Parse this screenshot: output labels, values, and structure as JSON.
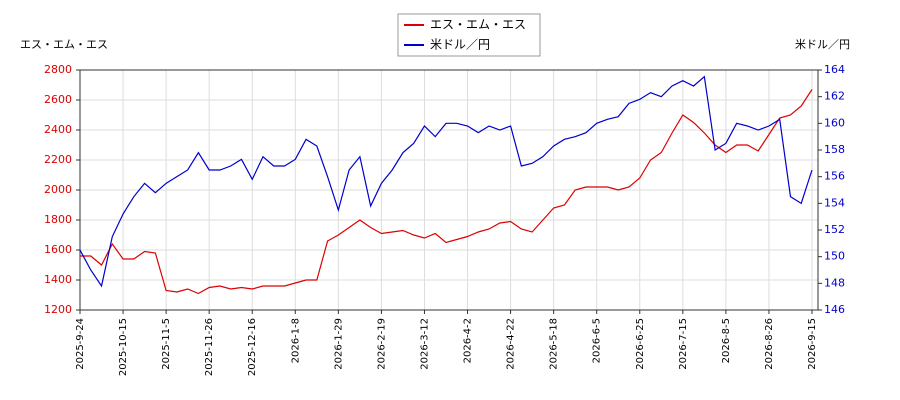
{
  "chart_data": {
    "type": "line",
    "y_label": "エス・エム・エス",
    "y2_label": "米ドル／円",
    "categories": [
      "2025-9-24",
      null,
      null,
      null,
      "2025-10-15",
      null,
      null,
      null,
      "2025-11-5",
      null,
      null,
      null,
      "2025-11-26",
      null,
      null,
      null,
      "2025-12-16",
      null,
      null,
      null,
      "2026-1-8",
      null,
      null,
      null,
      "2026-1-29",
      null,
      null,
      null,
      "2026-2-19",
      null,
      null,
      null,
      "2026-3-12",
      null,
      null,
      null,
      "2026-4-2",
      null,
      null,
      null,
      "2026-4-22",
      null,
      null,
      null,
      "2026-5-18",
      null,
      null,
      null,
      "2026-6-5",
      null,
      null,
      null,
      "2026-6-25",
      null,
      null,
      null,
      "2026-7-15",
      null,
      null,
      null,
      "2026-8-5",
      null,
      null,
      null,
      "2026-8-26",
      null,
      null,
      null,
      "2026-9-15"
    ],
    "series": [
      {
        "name": "エス・エム・エス",
        "color": "#dd0000",
        "axis": "y",
        "values": [
          1560,
          1560,
          1500,
          1640,
          1540,
          1540,
          1590,
          1580,
          1330,
          1320,
          1340,
          1310,
          1350,
          1360,
          1340,
          1350,
          1340,
          1360,
          1360,
          1360,
          1380,
          1400,
          1400,
          1660,
          1700,
          1750,
          1800,
          1750,
          1710,
          1720,
          1730,
          1700,
          1680,
          1710,
          1650,
          1670,
          1690,
          1720,
          1740,
          1780,
          1790,
          1740,
          1720,
          1800,
          1880,
          1900,
          2000,
          2020,
          2020,
          2020,
          2000,
          2020,
          2080,
          2200,
          2250,
          2380,
          2500,
          2450,
          2380,
          2300,
          2250,
          2300,
          2300,
          2260,
          2370,
          2480,
          2500,
          2560,
          2670
        ]
      },
      {
        "name": "米ドル／円",
        "color": "#0000cc",
        "axis": "y2",
        "values": [
          150.5,
          149,
          147.8,
          151.5,
          153.2,
          154.5,
          155.5,
          154.8,
          155.5,
          156,
          156.5,
          157.8,
          156.5,
          156.5,
          156.8,
          157.3,
          155.8,
          157.5,
          156.8,
          156.8,
          157.3,
          158.8,
          158.3,
          156,
          153.5,
          156.5,
          157.5,
          153.8,
          155.5,
          156.5,
          157.8,
          158.5,
          159.8,
          159,
          160,
          160,
          159.8,
          159.3,
          159.8,
          159.5,
          159.8,
          156.8,
          157,
          157.5,
          158.3,
          158.8,
          159,
          159.3,
          160,
          160.3,
          160.5,
          161.5,
          161.8,
          162.3,
          162,
          162.8,
          163.2,
          162.8,
          163.5,
          158,
          158.5,
          160,
          159.8,
          159.5,
          159.8,
          160.3,
          154.5,
          154,
          156.5
        ]
      }
    ],
    "ylim": [
      1200,
      2800
    ],
    "yticks": [
      1200,
      1400,
      1600,
      1800,
      2000,
      2200,
      2400,
      2600,
      2800
    ],
    "y2lim": [
      146,
      164
    ],
    "y2ticks": [
      146,
      148,
      150,
      152,
      154,
      156,
      158,
      160,
      162,
      164
    ],
    "grid": true
  }
}
